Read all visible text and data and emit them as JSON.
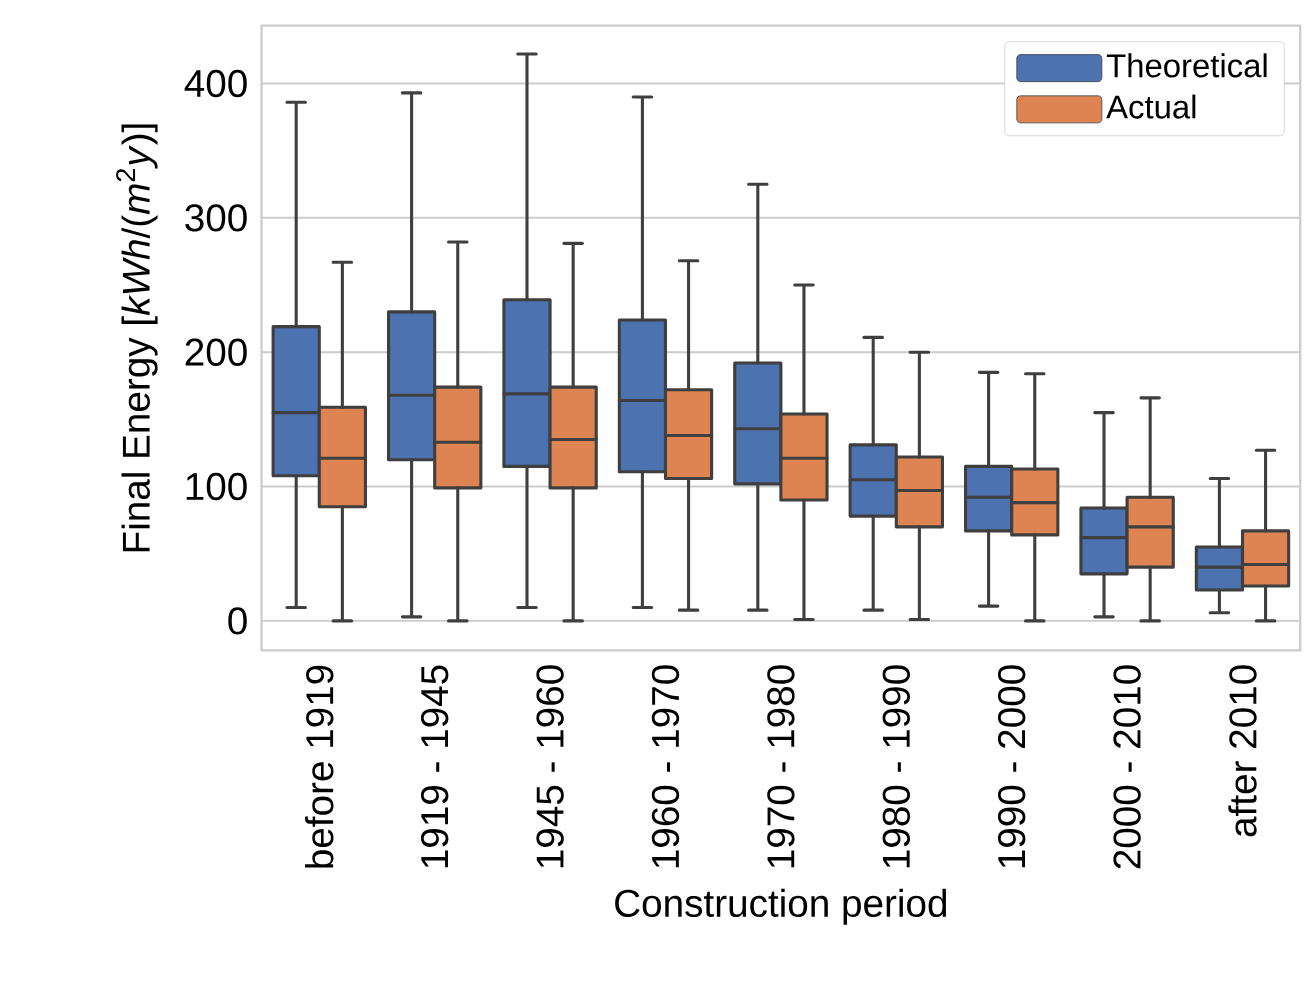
{
  "chart_data": {
    "type": "box",
    "xlabel": "Construction period",
    "ylabel": "Final Energy [*kWh*/(*m*$^{2}$*y*)]",
    "categories": [
      "before 1919",
      "1919 - 1945",
      "1945 - 1960",
      "1960 - 1970",
      "1970 - 1980",
      "1980 - 1990",
      "1990 - 2000",
      "2000 - 2010",
      "after 2010"
    ],
    "ylim": [
      -22,
      443
    ],
    "yticks": [
      0,
      100,
      200,
      300,
      400
    ],
    "grid": "y",
    "legend": "top right",
    "series": [
      {
        "name": "Theoretical",
        "color": "#4c72b0",
        "boxes": [
          {
            "low": 10,
            "q1": 108,
            "median": 155,
            "q3": 219,
            "high": 386
          },
          {
            "low": 3,
            "q1": 120,
            "median": 168,
            "q3": 230,
            "high": 393
          },
          {
            "low": 10,
            "q1": 115,
            "median": 169,
            "q3": 239,
            "high": 422
          },
          {
            "low": 10,
            "q1": 111,
            "median": 164,
            "q3": 224,
            "high": 390
          },
          {
            "low": 8,
            "q1": 102,
            "median": 143,
            "q3": 192,
            "high": 325
          },
          {
            "low": 8,
            "q1": 78,
            "median": 105,
            "q3": 131,
            "high": 211
          },
          {
            "low": 11,
            "q1": 67,
            "median": 92,
            "q3": 115,
            "high": 185
          },
          {
            "low": 3,
            "q1": 35,
            "median": 62,
            "q3": 84,
            "high": 155
          },
          {
            "low": 6,
            "q1": 23,
            "median": 40,
            "q3": 55,
            "high": 106
          }
        ]
      },
      {
        "name": "Actual",
        "color": "#dd8452",
        "boxes": [
          {
            "low": 0,
            "q1": 85,
            "median": 121,
            "q3": 159,
            "high": 267
          },
          {
            "low": 0,
            "q1": 99,
            "median": 133,
            "q3": 174,
            "high": 282
          },
          {
            "low": 0,
            "q1": 99,
            "median": 135,
            "q3": 174,
            "high": 281
          },
          {
            "low": 8,
            "q1": 106,
            "median": 138,
            "q3": 172,
            "high": 268
          },
          {
            "low": 1,
            "q1": 90,
            "median": 121,
            "q3": 154,
            "high": 250
          },
          {
            "low": 1,
            "q1": 70,
            "median": 97,
            "q3": 122,
            "high": 200
          },
          {
            "low": 0,
            "q1": 64,
            "median": 88,
            "q3": 113,
            "high": 184
          },
          {
            "low": 0,
            "q1": 40,
            "median": 70,
            "q3": 92,
            "high": 166
          },
          {
            "low": 0,
            "q1": 26,
            "median": 42,
            "q3": 67,
            "high": 127
          }
        ]
      }
    ]
  }
}
